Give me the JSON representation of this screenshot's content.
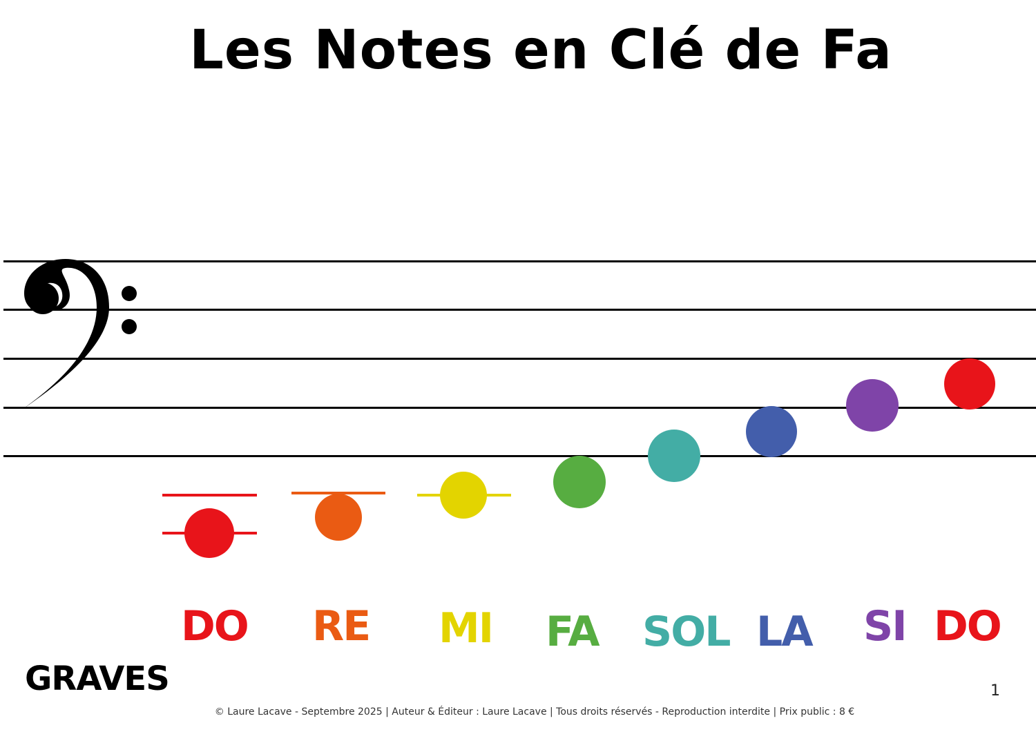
{
  "title": "Les Notes en Clé de Fa",
  "clef": "bass-clef",
  "notes": [
    {
      "label": "DO",
      "color": "#e8141a"
    },
    {
      "label": "RE",
      "color": "#ea5b13"
    },
    {
      "label": "MI",
      "color": "#e3d400"
    },
    {
      "label": "FA",
      "color": "#57ad41"
    },
    {
      "label": "SOL",
      "color": "#43ada5"
    },
    {
      "label": "LA",
      "color": "#435eab"
    },
    {
      "label": "SI",
      "color": "#7f44a8"
    },
    {
      "label": "DO",
      "color": "#e8141a"
    }
  ],
  "range_label": "GRAVES",
  "page_number": "1",
  "footer": "© Laure Lacave - Septembre 2025 | Auteur & Éditeur : Laure Lacave | Tous droits réservés - Reproduction interdite | Prix public : 8 €"
}
